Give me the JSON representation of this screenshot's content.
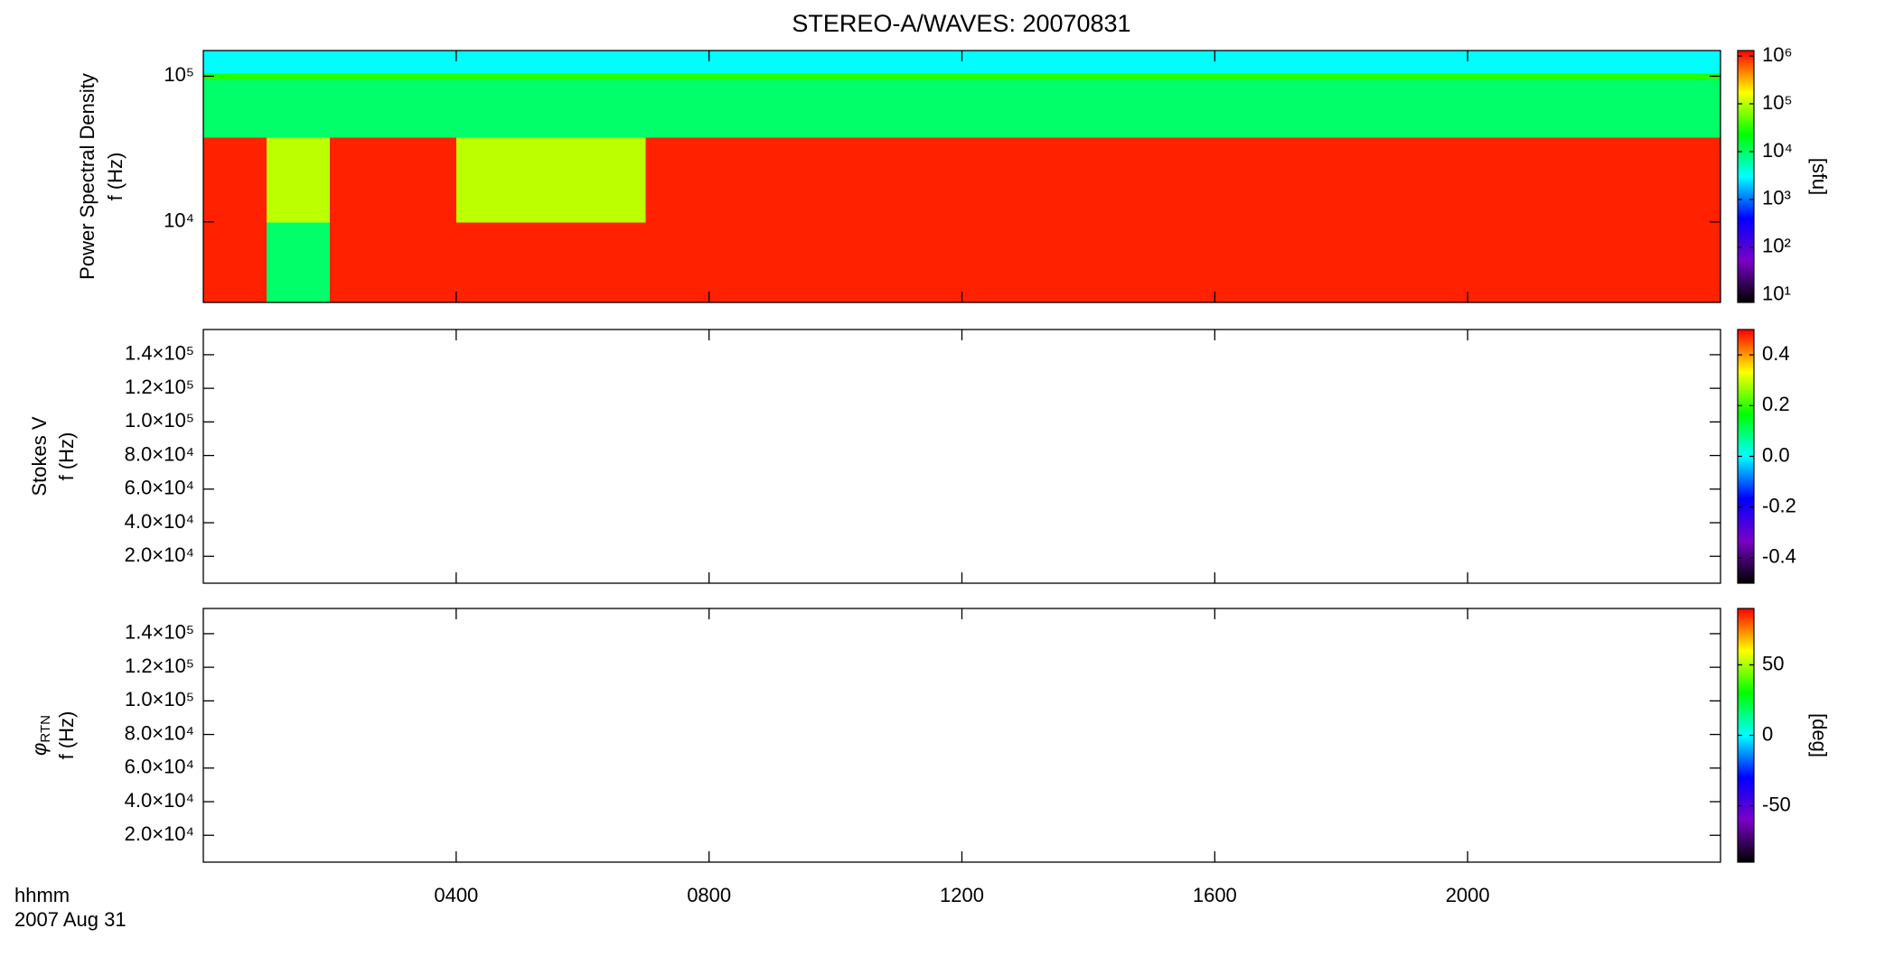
{
  "chart_data": [
    {
      "type": "heatmap",
      "title": "STEREO-A/WAVES: 20070831",
      "ylabel": [
        "Power Spectral Density",
        "f (Hz)"
      ],
      "ylog": true,
      "ylim": [
        2800,
        150000
      ],
      "yticks": [
        {
          "value": 10000,
          "label": "10⁴"
        },
        {
          "value": 100000,
          "label": "10⁵"
        }
      ],
      "xbins": [
        0,
        1,
        2,
        3,
        4,
        5,
        6,
        7,
        8,
        9,
        10,
        11,
        12,
        13,
        14,
        15,
        16,
        17,
        18,
        19,
        20,
        21,
        22,
        23,
        24
      ],
      "ybins": [
        2800,
        10000,
        38000,
        95000,
        105000,
        150000
      ],
      "z": [
        [
          1000000,
          10000,
          1000000,
          1000000,
          1000000,
          1000000,
          1000000,
          1000000,
          1000000,
          1000000,
          1000000,
          1000000,
          1000000,
          1000000,
          1000000,
          1000000,
          1000000,
          1000000,
          1000000,
          1000000,
          1000000,
          1000000,
          1000000,
          1000000
        ],
        [
          1000000,
          100000,
          1000000,
          1000000,
          100000,
          100000,
          100000,
          1000000,
          1000000,
          1000000,
          1000000,
          1000000,
          1000000,
          1000000,
          1000000,
          1000000,
          1000000,
          1000000,
          1000000,
          1000000,
          1000000,
          1000000,
          1000000,
          1000000
        ],
        [
          10000,
          10000,
          10000,
          10000,
          10000,
          10000,
          10000,
          10000,
          10000,
          10000,
          10000,
          10000,
          10000,
          10000,
          10000,
          10000,
          10000,
          10000,
          10000,
          10000,
          10000,
          10000,
          10000,
          10000
        ],
        [
          30000,
          30000,
          30000,
          30000,
          30000,
          30000,
          30000,
          30000,
          30000,
          30000,
          30000,
          30000,
          30000,
          30000,
          30000,
          30000,
          30000,
          30000,
          30000,
          30000,
          30000,
          30000,
          30000,
          30000
        ],
        [
          3000,
          3000,
          3000,
          3000,
          3000,
          3000,
          3000,
          3000,
          3000,
          3000,
          3000,
          3000,
          3000,
          3000,
          3000,
          3000,
          3000,
          3000,
          3000,
          3000,
          3000,
          3000,
          3000,
          3000
        ]
      ],
      "colormap": [
        "#000000",
        "#7a00c8",
        "#0000ff",
        "#00ffff",
        "#00ff00",
        "#ffff00",
        "#ff0000"
      ],
      "clog": true,
      "clim": [
        7,
        1300000
      ],
      "cticks": [
        {
          "value": 10,
          "label": "10¹"
        },
        {
          "value": 100,
          "label": "10²"
        },
        {
          "value": 1000,
          "label": "10³"
        },
        {
          "value": 10000,
          "label": "10⁴"
        },
        {
          "value": 100000,
          "label": "10⁵"
        },
        {
          "value": 1000000,
          "label": "10⁶"
        }
      ],
      "clabel": "[sfu]"
    },
    {
      "type": "heatmap",
      "ylabel": [
        "Stokes V",
        "f (Hz)"
      ],
      "ylim": [
        4000,
        155000
      ],
      "yticks": [
        {
          "value": 20000,
          "label": "2.0×10⁴"
        },
        {
          "value": 40000,
          "label": "4.0×10⁴"
        },
        {
          "value": 60000,
          "label": "6.0×10⁴"
        },
        {
          "value": 80000,
          "label": "8.0×10⁴"
        },
        {
          "value": 100000,
          "label": "1.0×10⁵"
        },
        {
          "value": 120000,
          "label": "1.2×10⁵"
        },
        {
          "value": 140000,
          "label": "1.4×10⁵"
        }
      ],
      "colormap": [
        "#000000",
        "#7a00c8",
        "#0000ff",
        "#00ffff",
        "#00ff00",
        "#ffff00",
        "#ff0000"
      ],
      "clim": [
        -0.5,
        0.5
      ],
      "cticks": [
        -0.4,
        -0.2,
        {
          "value": 0,
          "label": "0.0"
        },
        0.2,
        0.4
      ]
    },
    {
      "type": "heatmap",
      "ylabel": [
        {
          "symbol": "φ",
          "subscript": "RTN"
        },
        "f (Hz)"
      ],
      "ylim": [
        4000,
        155000
      ],
      "yticks": [
        {
          "value": 20000,
          "label": "2.0×10⁴"
        },
        {
          "value": 40000,
          "label": "4.0×10⁴"
        },
        {
          "value": 60000,
          "label": "6.0×10⁴"
        },
        {
          "value": 80000,
          "label": "8.0×10⁴"
        },
        {
          "value": 100000,
          "label": "1.0×10⁵"
        },
        {
          "value": 120000,
          "label": "1.2×10⁵"
        },
        {
          "value": 140000,
          "label": "1.4×10⁵"
        }
      ],
      "colormap": [
        "#000000",
        "#7a00c8",
        "#0000ff",
        "#00ffff",
        "#00ff00",
        "#ffff00",
        "#ff0000"
      ],
      "clim": [
        -90,
        90
      ],
      "cticks": [
        -50,
        0,
        50
      ],
      "clabel": "[deg]",
      "xlim": [
        0,
        24
      ],
      "xticks": [
        {
          "value": 4,
          "label": "0400"
        },
        {
          "value": 8,
          "label": "0800"
        },
        {
          "value": 12,
          "label": "1200"
        },
        {
          "value": 16,
          "label": "1600"
        },
        {
          "value": 20,
          "label": "2000"
        }
      ],
      "xlabel": [
        "hhmm",
        "2007 Aug 31"
      ]
    }
  ]
}
